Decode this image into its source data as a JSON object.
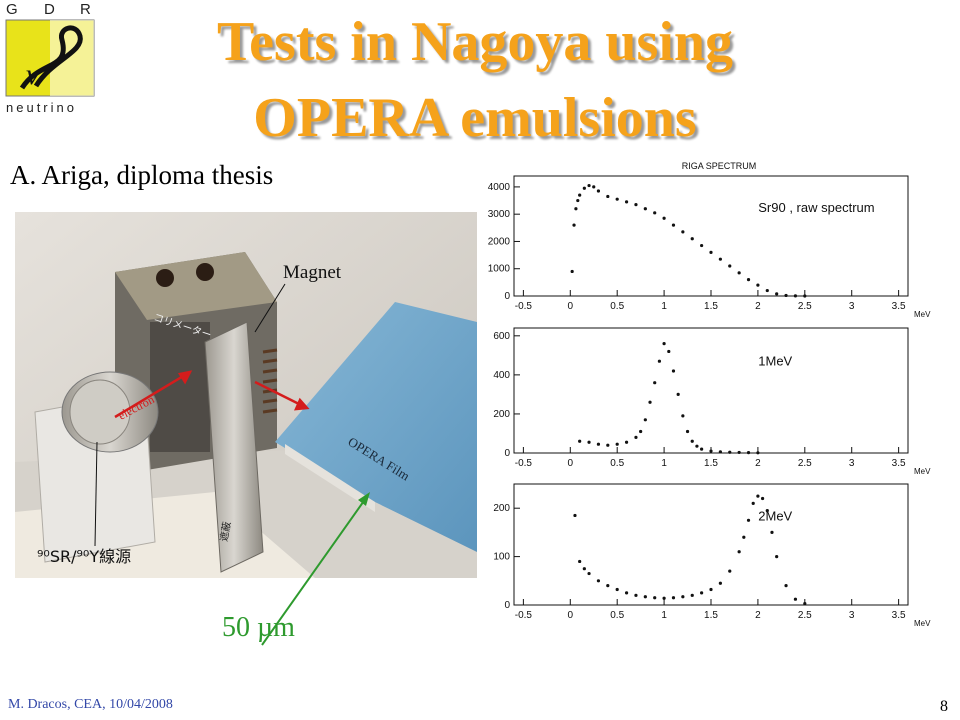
{
  "slide": {
    "title_line1": "Tests in Nagoya using",
    "title_line2": "OPERA emulsions",
    "subtitle": "A. Ariga, diploma thesis",
    "scale_label": "50 µm",
    "footer": "M. Dracos, CEA, 10/04/2008",
    "page_number": "8"
  },
  "logo": {
    "letters": [
      "G",
      "D",
      "R"
    ],
    "word": "neutrino",
    "symbol": "ν"
  },
  "photo": {
    "magnet_label": "Magnet",
    "collimator_label": "コリメーター",
    "electron_label": "electron",
    "film_label": "OPERA Film",
    "source_label": "⁹⁰SR/⁹⁰Y線源",
    "shield_label": "遮蔽"
  },
  "chart_data": [
    {
      "type": "scatter",
      "title": "RIGA SPECTRUM",
      "annotation": "Sr90 , raw spectrum",
      "xlabel": "MeV",
      "xlim": [
        -0.6,
        3.6
      ],
      "ylim": [
        0,
        4400
      ],
      "xticks": [
        "-0.5",
        "0",
        "0.5",
        "1",
        "1.5",
        "2",
        "2.5",
        "3",
        "3.5"
      ],
      "yticks": [
        0,
        1000,
        2000,
        3000,
        4000
      ],
      "x": [
        0.02,
        0.04,
        0.06,
        0.08,
        0.1,
        0.15,
        0.2,
        0.25,
        0.3,
        0.4,
        0.5,
        0.6,
        0.7,
        0.8,
        0.9,
        1.0,
        1.1,
        1.2,
        1.3,
        1.4,
        1.5,
        1.6,
        1.7,
        1.8,
        1.9,
        2.0,
        2.1,
        2.2,
        2.3,
        2.4,
        2.5
      ],
      "y": [
        900,
        2600,
        3200,
        3500,
        3700,
        3950,
        4050,
        4000,
        3850,
        3650,
        3550,
        3450,
        3350,
        3200,
        3050,
        2850,
        2600,
        2350,
        2100,
        1850,
        1600,
        1350,
        1100,
        850,
        600,
        400,
        200,
        80,
        20,
        5,
        0
      ]
    },
    {
      "type": "scatter",
      "annotation": "1MeV",
      "xlabel": "MeV",
      "xlim": [
        -0.6,
        3.6
      ],
      "ylim": [
        0,
        640
      ],
      "xticks": [
        "-0.5",
        "0",
        "0.5",
        "1",
        "1.5",
        "2",
        "2.5",
        "3",
        "3.5"
      ],
      "yticks": [
        0,
        200,
        400,
        600
      ],
      "x": [
        0.1,
        0.2,
        0.3,
        0.4,
        0.5,
        0.6,
        0.7,
        0.75,
        0.8,
        0.85,
        0.9,
        0.95,
        1.0,
        1.05,
        1.1,
        1.15,
        1.2,
        1.25,
        1.3,
        1.35,
        1.4,
        1.5,
        1.6,
        1.7,
        1.8,
        1.9,
        2.0
      ],
      "y": [
        60,
        55,
        45,
        40,
        45,
        55,
        80,
        110,
        170,
        260,
        360,
        470,
        560,
        520,
        420,
        300,
        190,
        110,
        60,
        35,
        20,
        10,
        6,
        4,
        3,
        2,
        1
      ]
    },
    {
      "type": "scatter",
      "annotation": "2MeV",
      "xlabel": "MeV",
      "xlim": [
        -0.6,
        3.6
      ],
      "ylim": [
        0,
        250
      ],
      "xticks": [
        "-0.5",
        "0",
        "0.5",
        "1",
        "1.5",
        "2",
        "2.5",
        "3",
        "3.5"
      ],
      "yticks": [
        0,
        100,
        200
      ],
      "x": [
        0.05,
        0.1,
        0.15,
        0.2,
        0.3,
        0.4,
        0.5,
        0.6,
        0.7,
        0.8,
        0.9,
        1.0,
        1.1,
        1.2,
        1.3,
        1.4,
        1.5,
        1.6,
        1.7,
        1.8,
        1.85,
        1.9,
        1.95,
        2.0,
        2.05,
        2.1,
        2.15,
        2.2,
        2.3,
        2.4,
        2.5
      ],
      "y": [
        185,
        90,
        75,
        65,
        50,
        40,
        32,
        25,
        20,
        17,
        15,
        14,
        15,
        17,
        20,
        25,
        32,
        45,
        70,
        110,
        140,
        175,
        210,
        225,
        220,
        195,
        150,
        100,
        40,
        12,
        3
      ]
    }
  ]
}
